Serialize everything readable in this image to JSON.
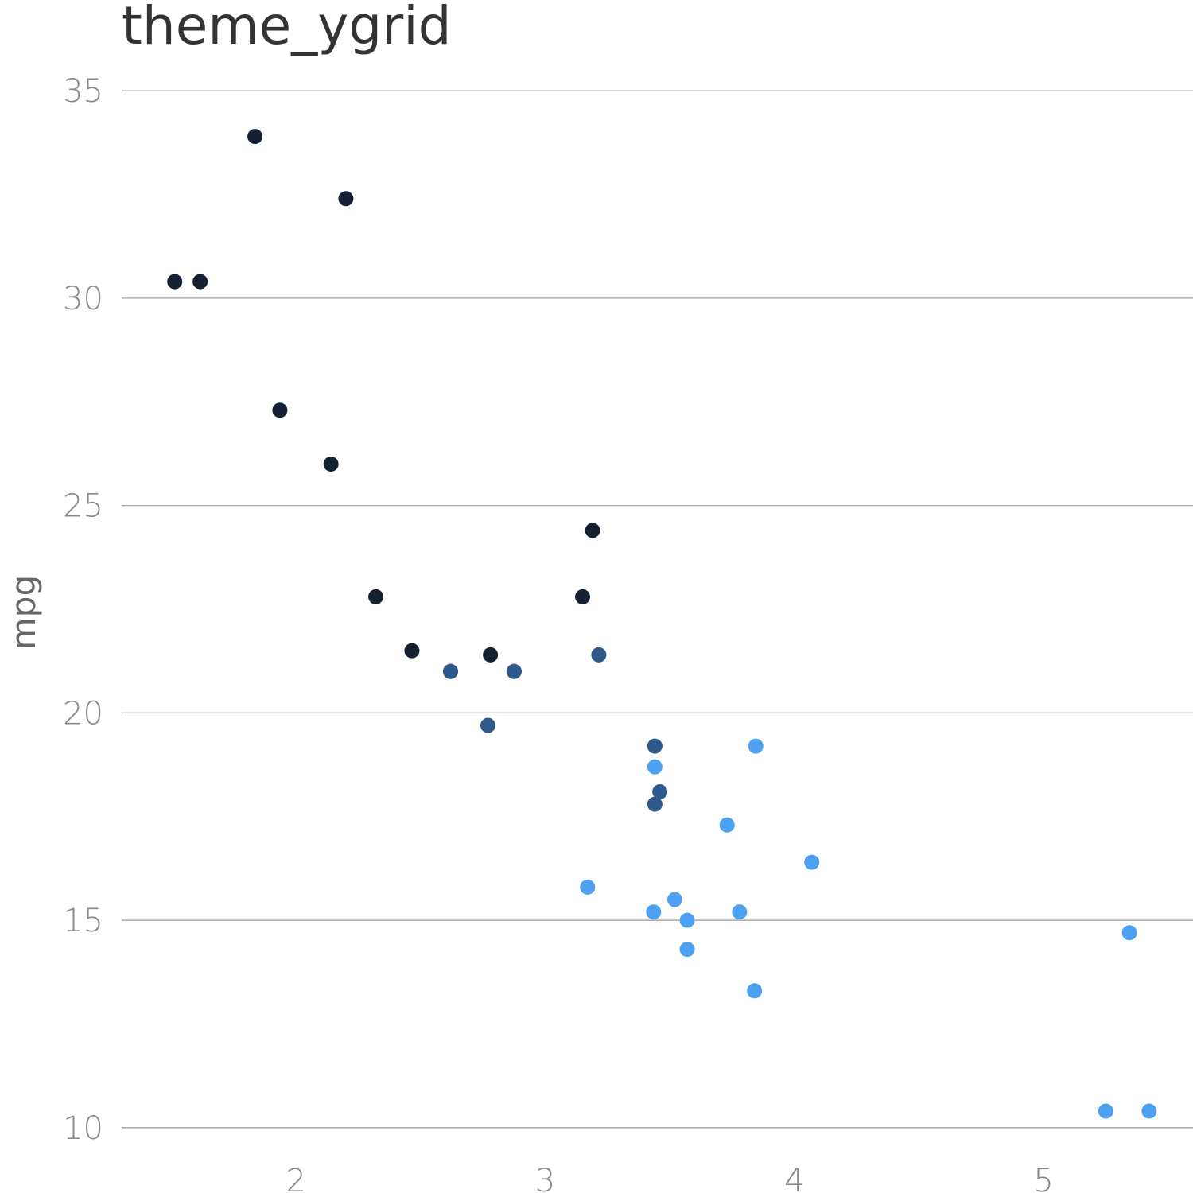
{
  "chart_data": {
    "type": "scatter",
    "title": "theme_ygrid",
    "xlabel": "",
    "ylabel": "mpg",
    "xlim": [
      1.3,
      5.6
    ],
    "ylim": [
      9.0,
      36.5
    ],
    "x_ticks": [
      2,
      3,
      4,
      5
    ],
    "y_ticks": [
      10,
      15,
      20,
      25,
      30,
      35
    ],
    "grid": {
      "horizontal": true,
      "vertical": false
    },
    "series": [
      {
        "color": "#132132",
        "points": [
          [
            2.62,
            21.0
          ],
          [
            2.875,
            21.0
          ],
          [
            2.32,
            22.8
          ],
          [
            3.19,
            24.4
          ],
          [
            3.15,
            22.8
          ],
          [
            2.2,
            32.4
          ],
          [
            1.615,
            30.4
          ],
          [
            1.835,
            33.9
          ],
          [
            2.465,
            21.5
          ],
          [
            1.935,
            27.3
          ],
          [
            2.14,
            26.0
          ],
          [
            1.513,
            30.4
          ],
          [
            2.78,
            21.4
          ]
        ]
      },
      {
        "color": "#2d5a8a",
        "points": [
          [
            2.62,
            21.0
          ],
          [
            2.875,
            21.0
          ],
          [
            3.215,
            21.4
          ],
          [
            3.44,
            19.2
          ],
          [
            3.44,
            17.8
          ],
          [
            3.46,
            18.1
          ],
          [
            2.77,
            19.7
          ]
        ]
      },
      {
        "color": "#4da1f0",
        "points": [
          [
            3.44,
            18.7
          ],
          [
            3.57,
            14.3
          ],
          [
            4.07,
            16.4
          ],
          [
            3.73,
            17.3
          ],
          [
            3.78,
            15.2
          ],
          [
            5.25,
            10.4
          ],
          [
            5.424,
            10.4
          ],
          [
            5.345,
            14.7
          ],
          [
            3.52,
            15.5
          ],
          [
            3.435,
            15.2
          ],
          [
            3.84,
            13.3
          ],
          [
            3.845,
            19.2
          ],
          [
            3.17,
            15.8
          ],
          [
            3.57,
            15.0
          ]
        ]
      }
    ]
  }
}
